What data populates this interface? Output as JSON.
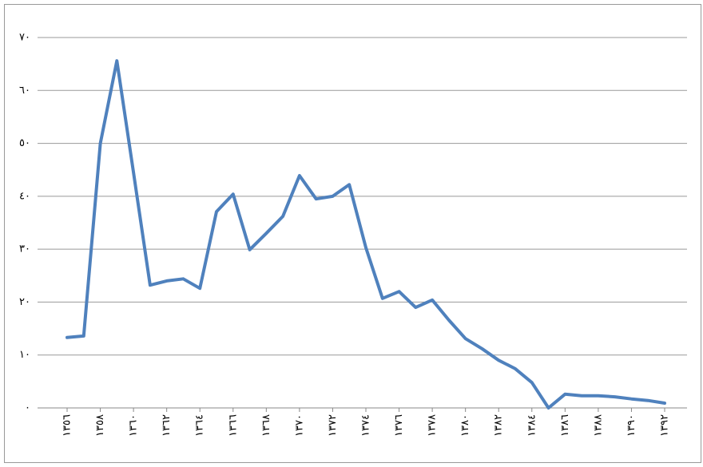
{
  "chart_data": {
    "type": "line",
    "categories": [
      "١٣٥٦",
      null,
      "١٣٥٨",
      null,
      "١٣٦٠",
      null,
      "١٣٦٢",
      null,
      "١٣٦٤",
      null,
      "١٣٦٦",
      null,
      "١٣٦٨",
      null,
      "١٣٧٠",
      null,
      "١٣٧٢",
      null,
      "١٣٧٤",
      null,
      "١٣٧٦",
      null,
      "١٣٧٨",
      null,
      "١٣٨٠",
      null,
      "١٣٨٢",
      null,
      "١٣٨٤",
      null,
      "١٣٨٦",
      null,
      "١٣٨٨",
      null,
      "١٣٩٠",
      null,
      "١٣٩٢"
    ],
    "series": [
      {
        "color": "#4f81bd",
        "values": [
          13.3,
          13.6,
          50,
          65.6,
          44.5,
          23.2,
          24,
          24.4,
          22.6,
          37.1,
          40.4,
          29.9,
          33,
          36.2,
          43.9,
          39.5,
          40,
          42.2,
          30.3,
          20.7,
          22,
          19,
          20.4,
          16.6,
          13.1,
          11.2,
          9,
          7.4,
          4.8,
          0,
          2.6,
          2.3,
          2.3,
          2.1,
          1.7,
          1.4,
          0.9
        ]
      }
    ],
    "ylim": [
      0,
      70
    ],
    "yticks": [
      {
        "value": 0,
        "label": "٠"
      },
      {
        "value": 10,
        "label": "١٠"
      },
      {
        "value": 20,
        "label": "٢٠"
      },
      {
        "value": 30,
        "label": "٣٠"
      },
      {
        "value": 40,
        "label": "٤٠"
      },
      {
        "value": 50,
        "label": "٥٠"
      },
      {
        "value": 60,
        "label": "٦٠"
      },
      {
        "value": 70,
        "label": "٧٠"
      }
    ],
    "grid": true
  }
}
